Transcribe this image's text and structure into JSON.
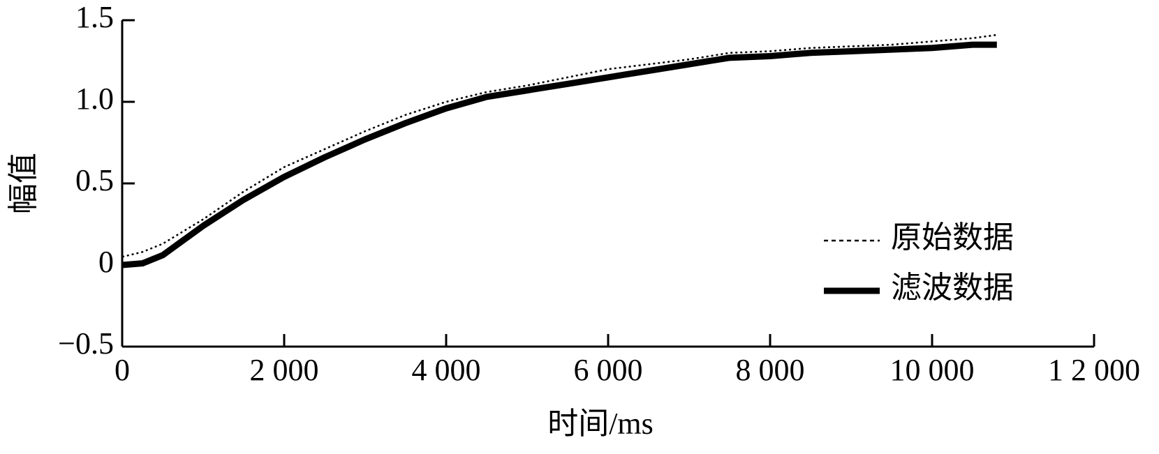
{
  "chart_data": {
    "type": "line",
    "x_label": "时间/ms",
    "y_label": "幅值",
    "x": [
      0,
      250,
      500,
      1000,
      1500,
      2000,
      2500,
      3000,
      3500,
      4000,
      4500,
      5000,
      5500,
      6000,
      6500,
      7000,
      7500,
      8000,
      8500,
      9000,
      9500,
      10000,
      10500,
      10800
    ],
    "series": [
      {
        "name": "原始数据",
        "color": "#000000",
        "style": "dotted",
        "values": [
          0.05,
          0.08,
          0.13,
          0.28,
          0.45,
          0.6,
          0.71,
          0.82,
          0.92,
          1.0,
          1.06,
          1.1,
          1.15,
          1.2,
          1.23,
          1.26,
          1.3,
          1.31,
          1.33,
          1.34,
          1.35,
          1.37,
          1.39,
          1.41
        ]
      },
      {
        "name": "滤波数据",
        "color": "#000000",
        "style": "solid",
        "values": [
          0.0,
          0.01,
          0.06,
          0.24,
          0.4,
          0.54,
          0.66,
          0.77,
          0.87,
          0.96,
          1.03,
          1.07,
          1.11,
          1.15,
          1.19,
          1.23,
          1.27,
          1.28,
          1.3,
          1.31,
          1.32,
          1.33,
          1.35,
          1.35
        ]
      }
    ],
    "xlim": [
      0,
      12000
    ],
    "xticks": [
      0,
      {
        "value": 2000,
        "label": "2 000"
      },
      {
        "value": 4000,
        "label": "4 000"
      },
      {
        "value": 6000,
        "label": "6 000"
      },
      {
        "value": 8000,
        "label": "8 000"
      },
      {
        "value": 10000,
        "label": "10 000"
      },
      {
        "value": 12000,
        "label": "1 2 000"
      }
    ],
    "ylim": [
      -0.5,
      1.5
    ],
    "yticks": [
      {
        "value": -0.5,
        "label": "−0.5"
      },
      0,
      0.5,
      {
        "value": 1.0,
        "label": "1.0"
      },
      1.5
    ],
    "grid": false,
    "legend": "right"
  }
}
